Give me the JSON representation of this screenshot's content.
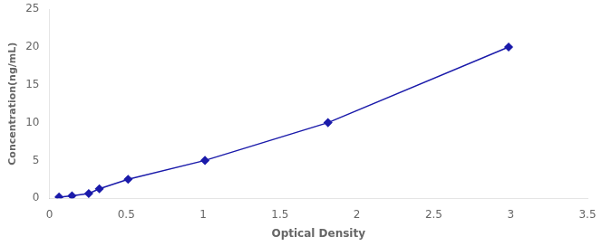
{
  "chart_data": {
    "type": "line",
    "x": [
      0.063,
      0.147,
      0.256,
      0.325,
      0.512,
      1.012,
      1.812,
      2.987
    ],
    "values": [
      0.156,
      0.312,
      0.625,
      1.25,
      2.5,
      5.0,
      10.0,
      20.0
    ],
    "color": "#1a1aaa",
    "marker": "diamond",
    "xlabel": "Optical Density",
    "ylabel": "Concentration(ng/mL)",
    "xlim": [
      0,
      3.5
    ],
    "ylim": [
      0,
      25
    ],
    "xticks": [
      0,
      0.5,
      1.0,
      1.5,
      2.0,
      2.5,
      3.0,
      3.5
    ],
    "yticks": [
      0,
      5,
      10,
      15,
      20,
      25
    ],
    "grid": false
  }
}
